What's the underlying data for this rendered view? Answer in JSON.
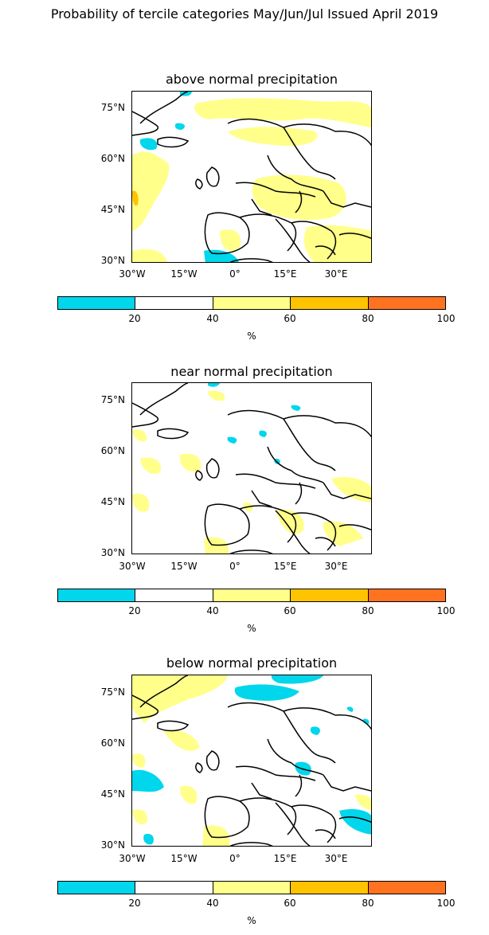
{
  "figure": {
    "title": "Probability of tercile categories May/Jun/Jul Issued April 2019"
  },
  "axes": {
    "y_ticks": [
      "75°N",
      "60°N",
      "45°N",
      "30°N"
    ],
    "x_ticks": [
      "30°W",
      "15°W",
      "0°",
      "15°E",
      "30°E"
    ]
  },
  "colorbar": {
    "unit": "%",
    "ticks": [
      "20",
      "40",
      "60",
      "80",
      "100"
    ],
    "colors": [
      "#00d6ec",
      "#ffffff",
      "#ffff8a",
      "#ffc300",
      "#ff7220"
    ]
  },
  "panels": [
    {
      "title": "above normal precipitation"
    },
    {
      "title": "near normal precipitation"
    },
    {
      "title": "below normal precipitation"
    }
  ]
}
